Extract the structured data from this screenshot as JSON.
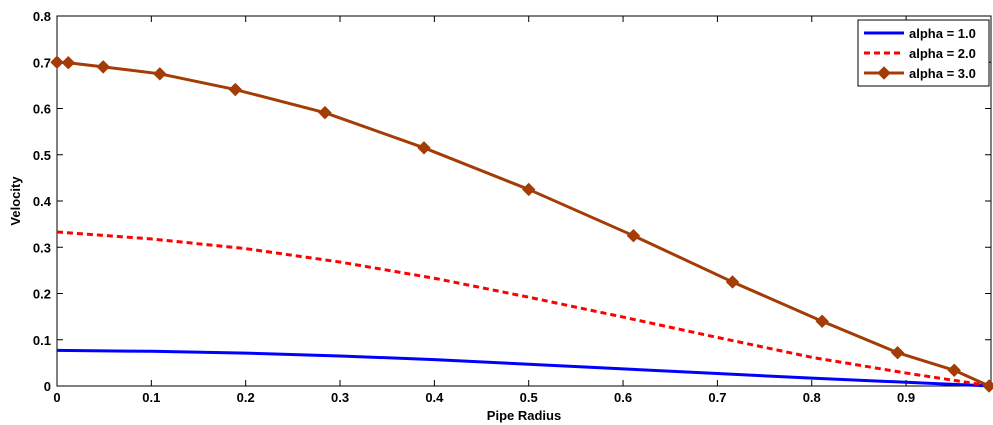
{
  "chart_data": {
    "type": "line",
    "title": "",
    "xlabel": "Pipe Radius",
    "ylabel": "Velocity",
    "xlim": [
      0,
      0.99
    ],
    "ylim": [
      0,
      0.8
    ],
    "xticks": [
      0,
      0.1,
      0.2,
      0.3,
      0.4,
      0.5,
      0.6,
      0.7,
      0.8,
      0.9
    ],
    "xtick_labels": [
      "0",
      "0.1",
      "0.2",
      "0.3",
      "0.4",
      "0.5",
      "0.6",
      "0.7",
      "0.8",
      "0.9"
    ],
    "yticks": [
      0,
      0.1,
      0.2,
      0.3,
      0.4,
      0.5,
      0.6,
      0.7,
      0.8
    ],
    "ytick_labels": [
      "0",
      "0.1",
      "0.2",
      "0.3",
      "0.4",
      "0.5",
      "0.6",
      "0.7",
      "0.8"
    ],
    "grid": false,
    "legend_position": "top-right",
    "series": [
      {
        "name": "alpha = 1.0",
        "color": "#0000ff",
        "style": "solid",
        "marker": "none",
        "x": [
          0,
          0.1,
          0.2,
          0.3,
          0.4,
          0.5,
          0.6,
          0.7,
          0.8,
          0.9,
          0.99
        ],
        "y": [
          0.077,
          0.075,
          0.071,
          0.065,
          0.057,
          0.047,
          0.037,
          0.027,
          0.017,
          0.008,
          0.0
        ]
      },
      {
        "name": "alpha = 2.0",
        "color": "#ff0000",
        "style": "dashed",
        "marker": "none",
        "x": [
          0,
          0.1,
          0.2,
          0.3,
          0.4,
          0.5,
          0.6,
          0.7,
          0.8,
          0.9,
          0.99
        ],
        "y": [
          0.333,
          0.318,
          0.297,
          0.268,
          0.233,
          0.192,
          0.149,
          0.105,
          0.062,
          0.028,
          0.0
        ]
      },
      {
        "name": "alpha = 3.0",
        "color": "#a33c05",
        "style": "solid",
        "marker": "diamond",
        "x": [
          0,
          0.012,
          0.049,
          0.109,
          0.189,
          0.284,
          0.389,
          0.5,
          0.611,
          0.716,
          0.811,
          0.891,
          0.951,
          0.988
        ],
        "y": [
          0.7,
          0.699,
          0.69,
          0.675,
          0.641,
          0.591,
          0.515,
          0.425,
          0.325,
          0.225,
          0.14,
          0.072,
          0.034,
          0.0
        ]
      }
    ]
  }
}
